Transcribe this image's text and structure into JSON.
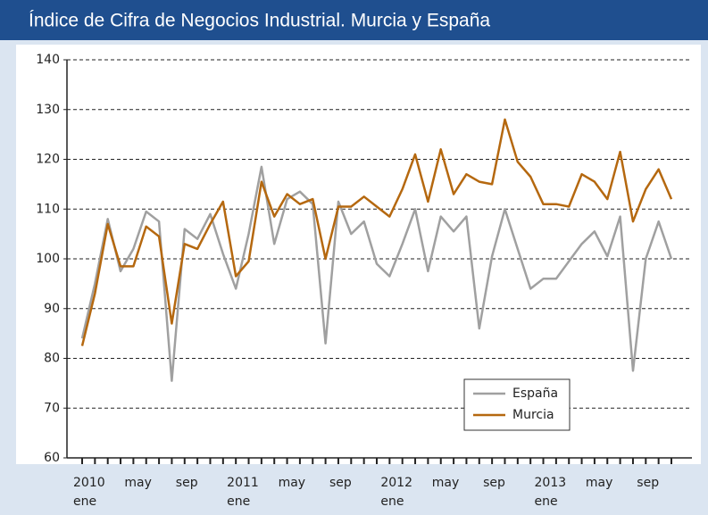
{
  "chart_data": {
    "type": "line",
    "title": "Índice de Cifra de Negocios Industrial. Murcia y España",
    "categories": [
      "ene",
      null,
      null,
      null,
      "may",
      null,
      null,
      null,
      "sep",
      null,
      null,
      null,
      "ene",
      null,
      null,
      null,
      "may",
      null,
      null,
      null,
      "sep",
      null,
      null,
      null,
      "ene",
      null,
      null,
      null,
      "may",
      null,
      null,
      null,
      "sep",
      null,
      null,
      null,
      "ene",
      null,
      null,
      null,
      "may",
      null,
      null,
      null,
      "sep",
      null,
      null
    ],
    "category_years": [
      "2010",
      null,
      null,
      null,
      null,
      null,
      null,
      null,
      null,
      null,
      null,
      null,
      "2011",
      null,
      null,
      null,
      null,
      null,
      null,
      null,
      null,
      null,
      null,
      null,
      "2012",
      null,
      null,
      null,
      null,
      null,
      null,
      null,
      null,
      null,
      null,
      null,
      "2013",
      null,
      null,
      null,
      null,
      null,
      null,
      null,
      null,
      null,
      null
    ],
    "series": [
      {
        "name": "España",
        "color": "#a0a0a0",
        "values": [
          84,
          95,
          108,
          97.5,
          102,
          109.5,
          107.5,
          75.5,
          106,
          104,
          109,
          101,
          94,
          105,
          118.5,
          103,
          112,
          113.5,
          111,
          83,
          111.5,
          105,
          107.5,
          99,
          96.5,
          103,
          110,
          97.5,
          108.5,
          105.5,
          108.5,
          86,
          100.5,
          110,
          102,
          94,
          96,
          96,
          99.5,
          103,
          105.5,
          100.5,
          108.5,
          77.5,
          100,
          107.5,
          100
        ]
      },
      {
        "name": "Murcia",
        "color": "#b5680f",
        "values": [
          82.5,
          93,
          107,
          98.5,
          98.5,
          106.5,
          104.5,
          87,
          103,
          102,
          107,
          111.5,
          96.5,
          99.5,
          115.5,
          108.5,
          113,
          111,
          112,
          100,
          110.5,
          110.5,
          112.5,
          110.5,
          108.5,
          114,
          121,
          111.5,
          122,
          113,
          117,
          115.5,
          115,
          128,
          119.5,
          116.5,
          111,
          111,
          110.5,
          117,
          115.5,
          112,
          121.5,
          107.5,
          114,
          118,
          112
        ]
      }
    ],
    "ylim": [
      60,
      140
    ],
    "yticks": [
      60,
      70,
      80,
      90,
      100,
      110,
      120,
      130,
      140
    ],
    "grid": true,
    "legend": "lower-center"
  }
}
